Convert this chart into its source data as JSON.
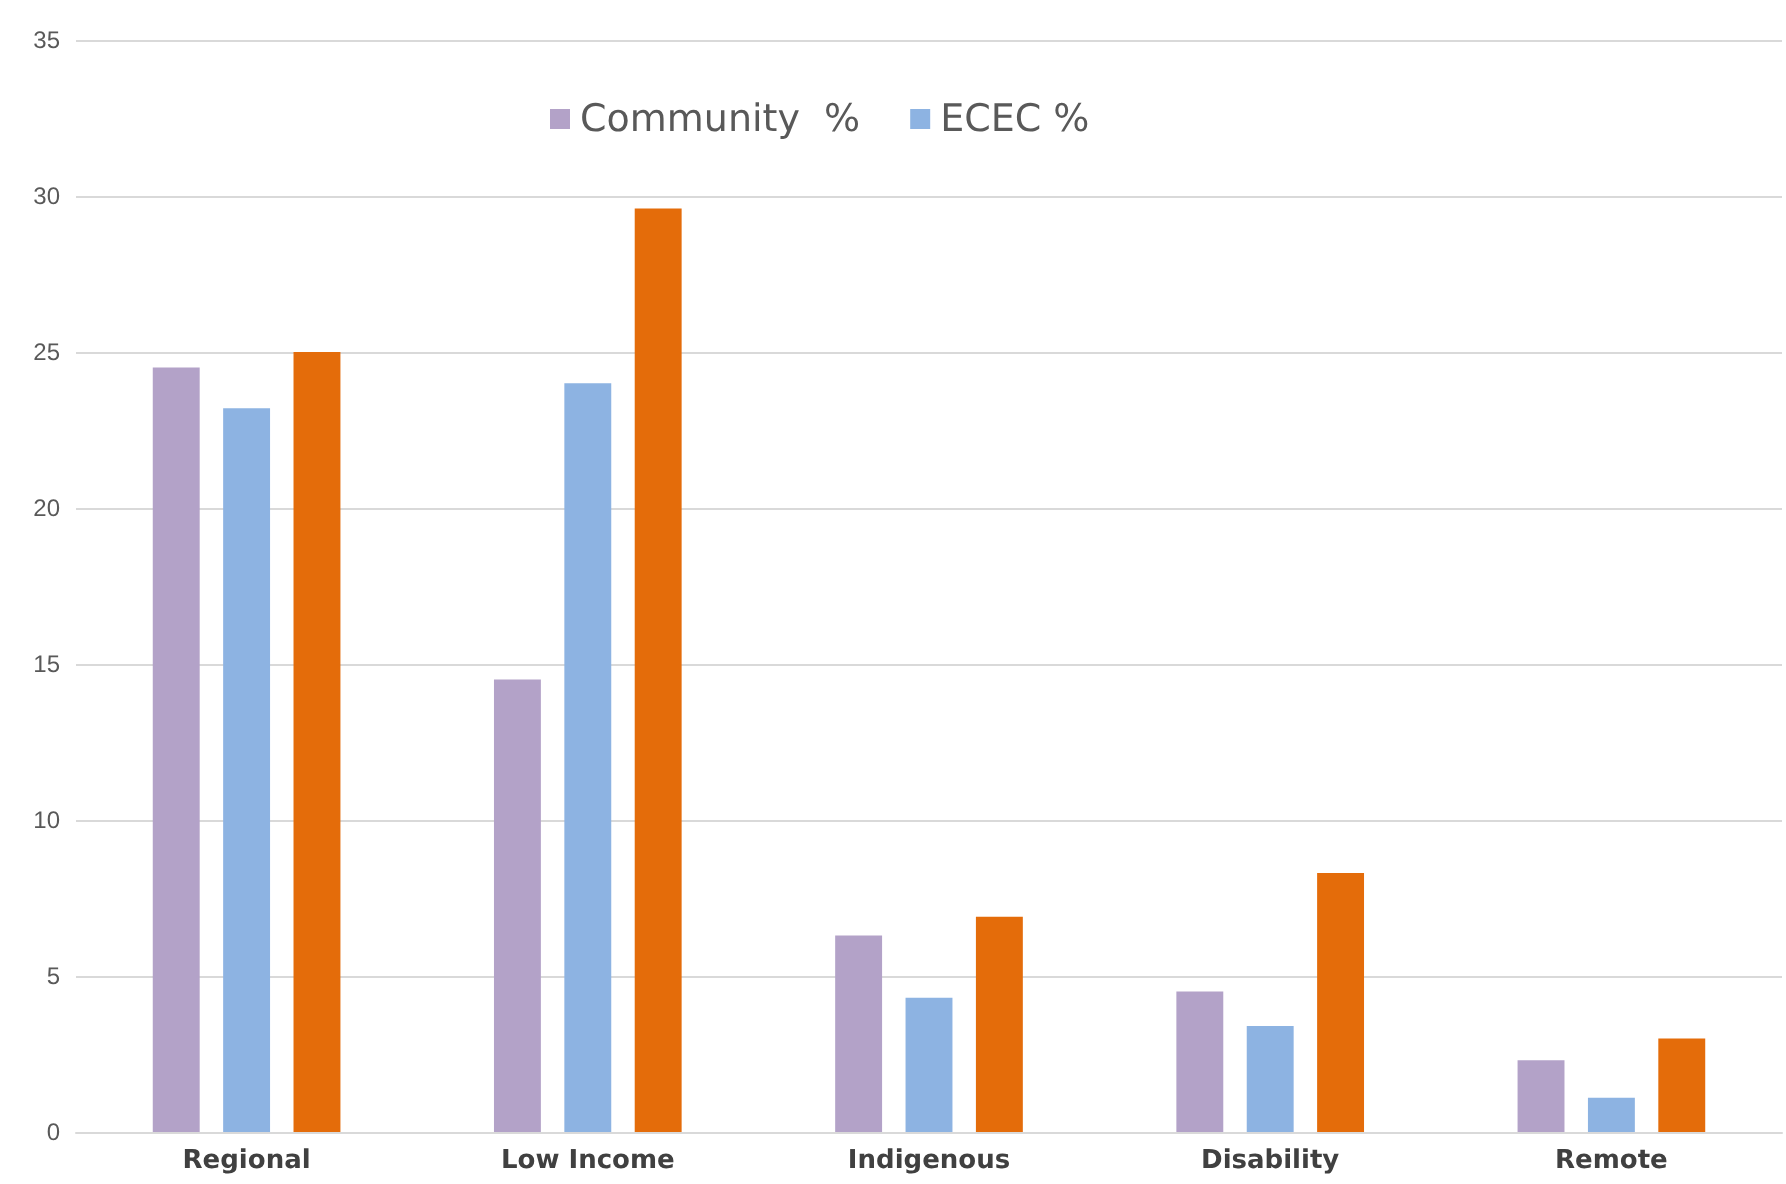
{
  "chart_data": {
    "type": "bar",
    "categories": [
      "Regional",
      "Low Income",
      "Indigenous",
      "Disability",
      "Remote"
    ],
    "series": [
      {
        "name": "Community  %",
        "color": "#b3a2c8",
        "values": [
          24.5,
          14.5,
          6.3,
          4.5,
          2.3
        ]
      },
      {
        "name": "ECEC %",
        "color": "#8db3e2",
        "values": [
          23.2,
          24.0,
          4.3,
          3.4,
          1.1
        ]
      },
      {
        "color": "#e46c0a",
        "values": [
          25.0,
          29.6,
          6.9,
          8.3,
          3.0
        ]
      }
    ],
    "ylim": [
      0,
      35
    ],
    "yticks": [
      0,
      5,
      10,
      15,
      20,
      25,
      30,
      35
    ],
    "grid": "y",
    "legend": "top"
  }
}
